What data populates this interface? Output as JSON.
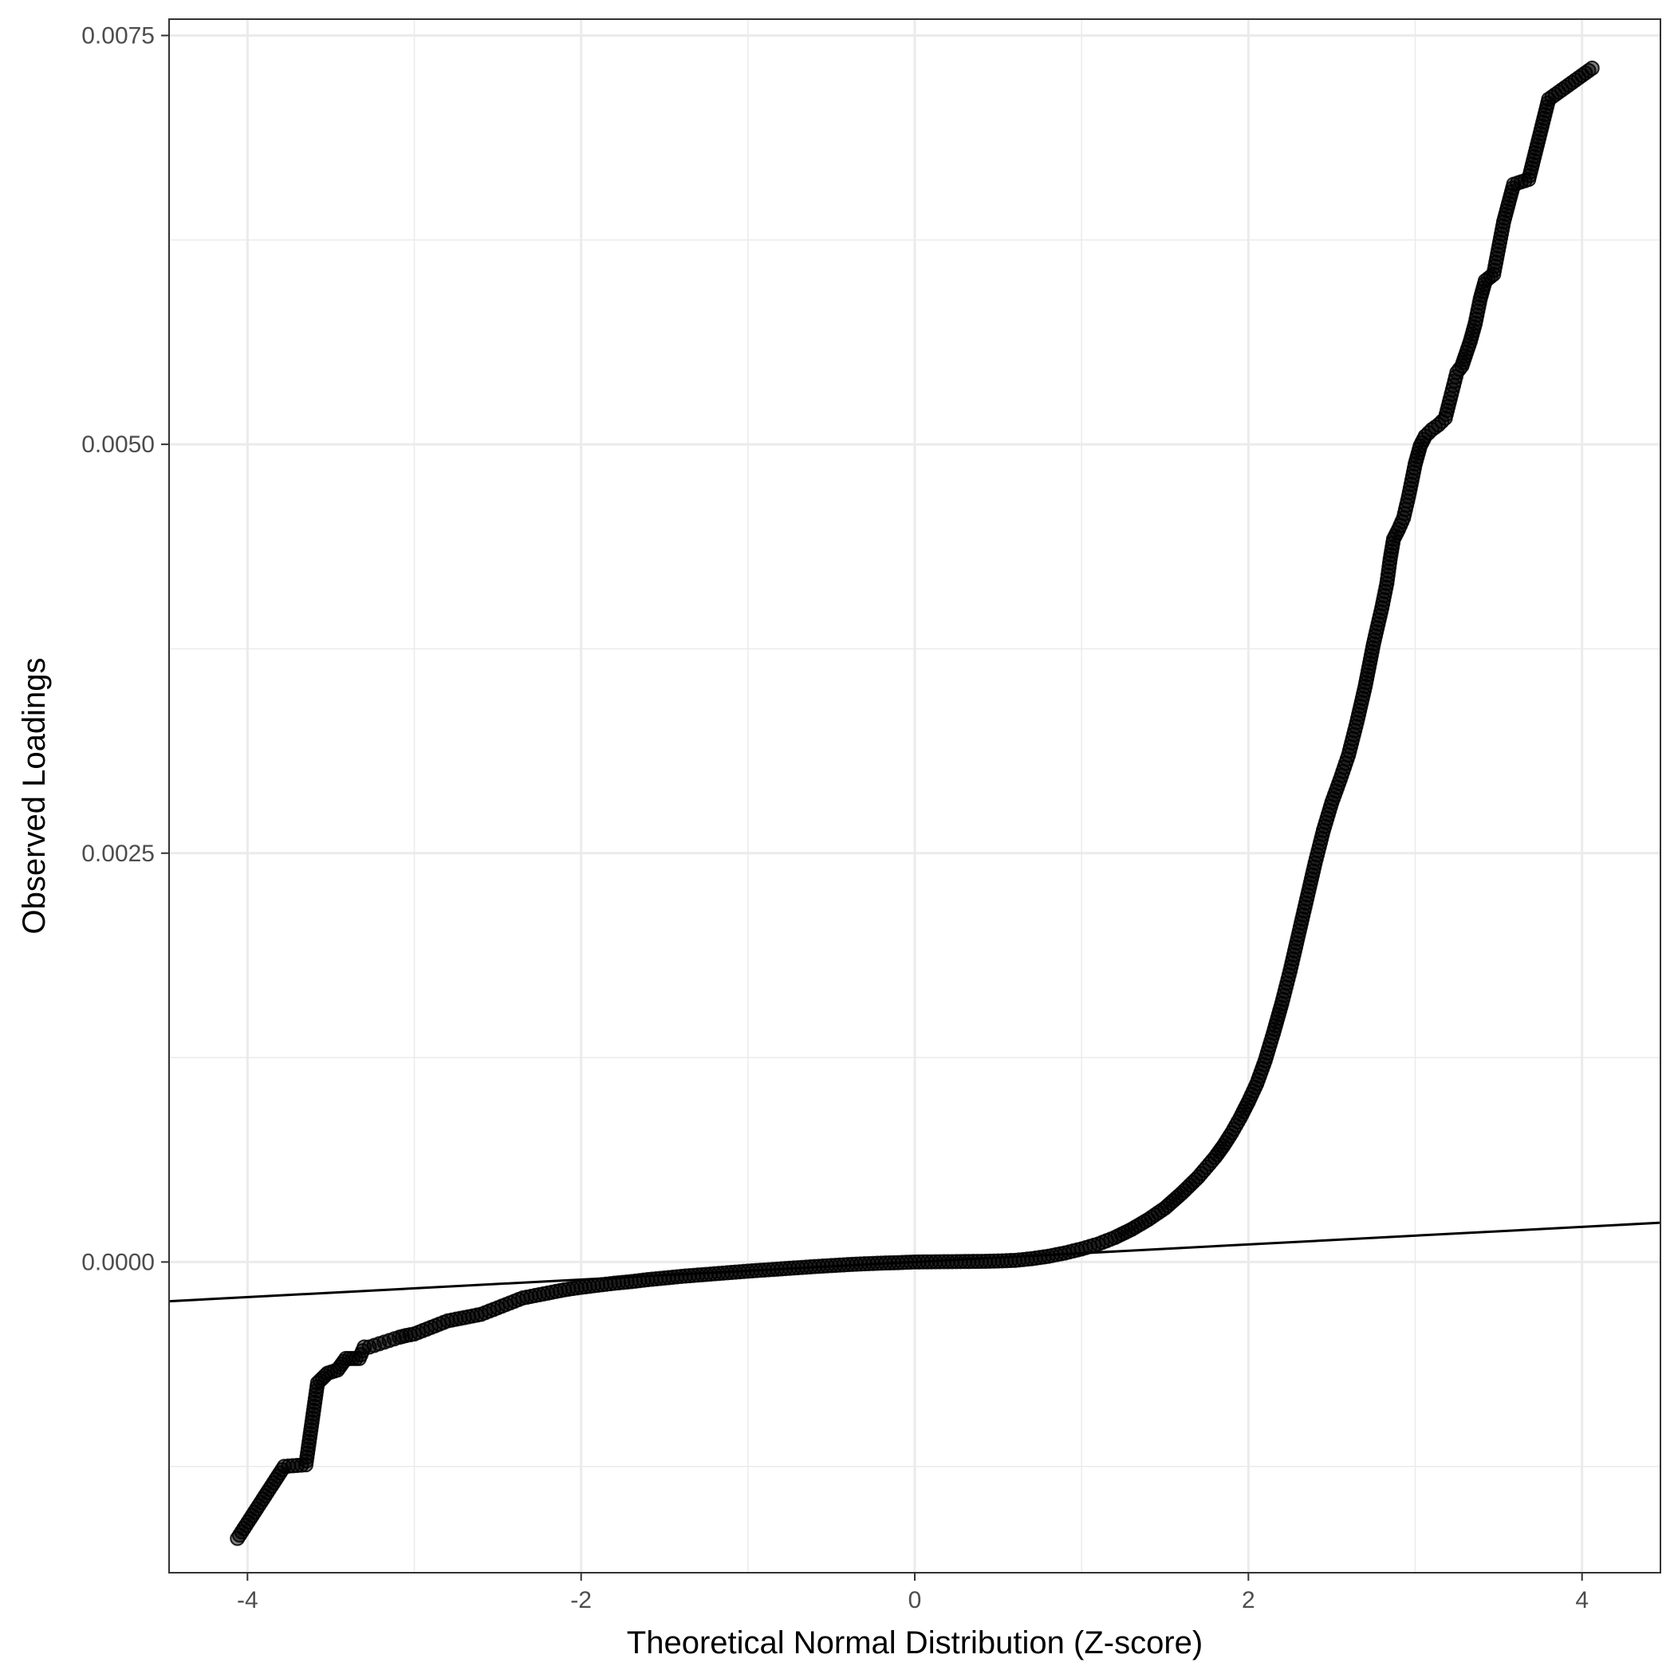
{
  "chart_data": {
    "type": "scatter",
    "title": "",
    "xlabel": "Theoretical Normal Distribution (Z-score)",
    "ylabel": "Observed Loadings",
    "xlim": [
      -4.47,
      4.47
    ],
    "ylim": [
      -0.0019,
      0.0076
    ],
    "x_ticks": [
      -4,
      -2,
      0,
      2,
      4
    ],
    "x_tick_labels": [
      "-4",
      "-2",
      "0",
      "2",
      "4"
    ],
    "y_ticks": [
      0.0,
      0.0025,
      0.005,
      0.0075
    ],
    "y_tick_labels": [
      "0.0000",
      "0.0025",
      "0.0050",
      "0.0075"
    ],
    "x_minor_grid": [
      -3,
      -1,
      1,
      3
    ],
    "y_minor_grid": [
      -0.00125,
      0.00125,
      0.00375,
      0.00625
    ],
    "grid": true,
    "theme": "black-and-white",
    "point_color": "#000000",
    "point_opacity": 0.5,
    "reference_line": {
      "slope": 5.37e-05,
      "intercept": 0.0,
      "color": "#000000"
    },
    "series": [
      {
        "points": [
          [
            -4.06,
            -0.00169
          ],
          [
            -3.78,
            -0.00125
          ],
          [
            -3.65,
            -0.00124
          ],
          [
            -3.58,
            -0.00074
          ],
          [
            -3.52,
            -0.00068
          ],
          [
            -3.46,
            -0.00066
          ],
          [
            -3.41,
            -0.00059
          ],
          [
            -3.37,
            -0.00059
          ],
          [
            -3.33,
            -0.00059
          ],
          [
            -3.3,
            -0.00052
          ],
          [
            -3.27,
            -0.00052
          ],
          [
            -3.24,
            -0.00051
          ],
          [
            -3.21,
            -0.0005
          ],
          [
            -3.18,
            -0.00049
          ],
          [
            -3.15,
            -0.00048
          ],
          [
            -3.12,
            -0.00047
          ],
          [
            -3.09,
            -0.00046
          ],
          [
            -3.05,
            -0.00045
          ],
          [
            -3.0,
            -0.00044
          ],
          [
            -2.95,
            -0.00042
          ],
          [
            -2.9,
            -0.0004
          ],
          [
            -2.85,
            -0.00038
          ],
          [
            -2.8,
            -0.00036
          ],
          [
            -2.75,
            -0.00035
          ],
          [
            -2.7,
            -0.00034
          ],
          [
            -2.65,
            -0.00033
          ],
          [
            -2.6,
            -0.00032
          ],
          [
            -2.55,
            -0.0003
          ],
          [
            -2.5,
            -0.00028
          ],
          [
            -2.45,
            -0.00026
          ],
          [
            -2.4,
            -0.00024
          ],
          [
            -2.35,
            -0.00022
          ],
          [
            -2.3,
            -0.00021
          ],
          [
            -2.25,
            -0.0002
          ],
          [
            -2.2,
            -0.00019
          ],
          [
            -2.15,
            -0.00018
          ],
          [
            -2.1,
            -0.00017
          ],
          [
            -2.05,
            -0.000162
          ],
          [
            -2.0,
            -0.000155
          ],
          [
            -1.9,
            -0.000142
          ],
          [
            -1.8,
            -0.00013
          ],
          [
            -1.7,
            -0.00012
          ],
          [
            -1.6,
            -0.000108
          ],
          [
            -1.5,
            -9.8e-05
          ],
          [
            -1.4,
            -8.8e-05
          ],
          [
            -1.3,
            -8e-05
          ],
          [
            -1.2,
            -7.2e-05
          ],
          [
            -1.1,
            -6.4e-05
          ],
          [
            -1.0,
            -5.6e-05
          ],
          [
            -0.9,
            -4.9e-05
          ],
          [
            -0.8,
            -4.2e-05
          ],
          [
            -0.7,
            -3.5e-05
          ],
          [
            -0.6,
            -2.8e-05
          ],
          [
            -0.5,
            -2.2e-05
          ],
          [
            -0.4,
            -1.6e-05
          ],
          [
            -0.3,
            -1.1e-05
          ],
          [
            -0.2,
            -7e-06
          ],
          [
            -0.1,
            -4e-06
          ],
          [
            0.0,
            0.0
          ],
          [
            0.1,
            1e-06
          ],
          [
            0.2,
            2e-06
          ],
          [
            0.3,
            3e-06
          ],
          [
            0.4,
            4e-06
          ],
          [
            0.5,
            6e-06
          ],
          [
            0.6,
            1e-05
          ],
          [
            0.7,
            2e-05
          ],
          [
            0.8,
            3.5e-05
          ],
          [
            0.9,
            5.5e-05
          ],
          [
            1.0,
            8e-05
          ],
          [
            1.1,
            0.00011
          ],
          [
            1.2,
            0.00015
          ],
          [
            1.3,
            0.0002
          ],
          [
            1.4,
            0.00026
          ],
          [
            1.5,
            0.00033
          ],
          [
            1.6,
            0.00042
          ],
          [
            1.7,
            0.00052
          ],
          [
            1.8,
            0.00064
          ],
          [
            1.85,
            0.00071
          ],
          [
            1.9,
            0.00079
          ],
          [
            1.95,
            0.00088
          ],
          [
            2.0,
            0.00098
          ],
          [
            2.05,
            0.00109
          ],
          [
            2.1,
            0.00123
          ],
          [
            2.15,
            0.0014
          ],
          [
            2.2,
            0.00158
          ],
          [
            2.25,
            0.00178
          ],
          [
            2.3,
            0.002
          ],
          [
            2.35,
            0.00222
          ],
          [
            2.4,
            0.00244
          ],
          [
            2.45,
            0.00264
          ],
          [
            2.5,
            0.00281
          ],
          [
            2.55,
            0.00295
          ],
          [
            2.6,
            0.0031
          ],
          [
            2.65,
            0.0033
          ],
          [
            2.7,
            0.00352
          ],
          [
            2.75,
            0.00378
          ],
          [
            2.8,
            0.004
          ],
          [
            2.83,
            0.00415
          ],
          [
            2.85,
            0.0043
          ],
          [
            2.87,
            0.00442
          ],
          [
            2.9,
            0.00448
          ],
          [
            2.93,
            0.00455
          ],
          [
            2.96,
            0.00468
          ],
          [
            2.98,
            0.00478
          ],
          [
            3.0,
            0.00488
          ],
          [
            3.03,
            0.00499
          ],
          [
            3.06,
            0.00505
          ],
          [
            3.1,
            0.00509
          ],
          [
            3.14,
            0.00512
          ],
          [
            3.18,
            0.00516
          ],
          [
            3.21,
            0.00528
          ],
          [
            3.23,
            0.00536
          ],
          [
            3.25,
            0.00544
          ],
          [
            3.28,
            0.00548
          ],
          [
            3.3,
            0.00554
          ],
          [
            3.33,
            0.00563
          ],
          [
            3.36,
            0.00574
          ],
          [
            3.39,
            0.00589
          ],
          [
            3.42,
            0.006
          ],
          [
            3.47,
            0.00604
          ],
          [
            3.53,
            0.00636
          ],
          [
            3.59,
            0.00659
          ],
          [
            3.68,
            0.00662
          ],
          [
            3.8,
            0.00711
          ],
          [
            4.06,
            0.0073
          ]
        ]
      }
    ]
  }
}
